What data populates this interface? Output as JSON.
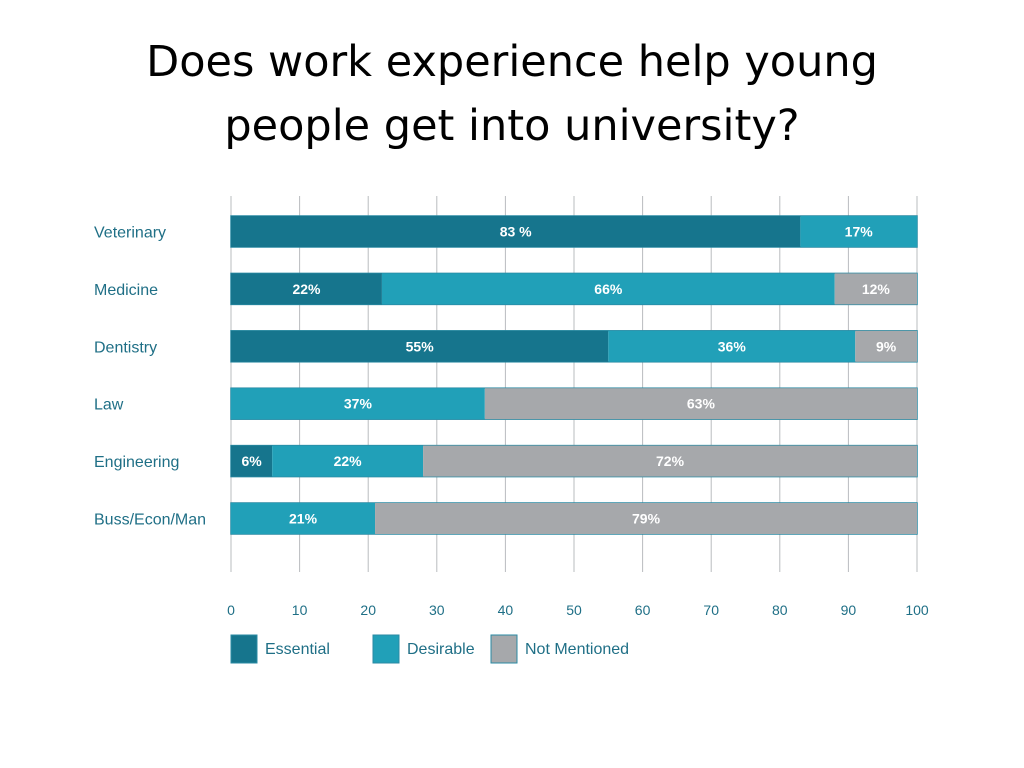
{
  "title": {
    "line1": "Does work experience help young",
    "line2": "people get into university?"
  },
  "chart_data": {
    "type": "bar",
    "orientation": "horizontal",
    "stacked": true,
    "categories": [
      "Veterinary",
      "Medicine",
      "Dentistry",
      "Law",
      "Engineering",
      "Buss/Econ/Man"
    ],
    "series": [
      {
        "name": "Essential",
        "color": "#16758d",
        "values": [
          83,
          22,
          55,
          0,
          6,
          0
        ],
        "labels": [
          "83 %",
          "22%",
          "55%",
          "",
          "6%",
          ""
        ]
      },
      {
        "name": "Desirable",
        "color": "#21a0b8",
        "values": [
          17,
          66,
          36,
          37,
          22,
          21
        ],
        "labels": [
          "17%",
          "66%",
          "36%",
          "37%",
          "22%",
          "21%"
        ]
      },
      {
        "name": "Not Mentioned",
        "color": "#a6a8ab",
        "values": [
          0,
          12,
          9,
          63,
          72,
          79
        ],
        "labels": [
          "",
          "12%",
          "9%",
          "63%",
          "72%",
          "79%"
        ]
      }
    ],
    "xlim": [
      0,
      100
    ],
    "x_ticks": [
      "0",
      "10",
      "20",
      "30",
      "40",
      "50",
      "60",
      "70",
      "80",
      "90",
      "100"
    ],
    "grid": true,
    "legend_position": "bottom-left"
  }
}
